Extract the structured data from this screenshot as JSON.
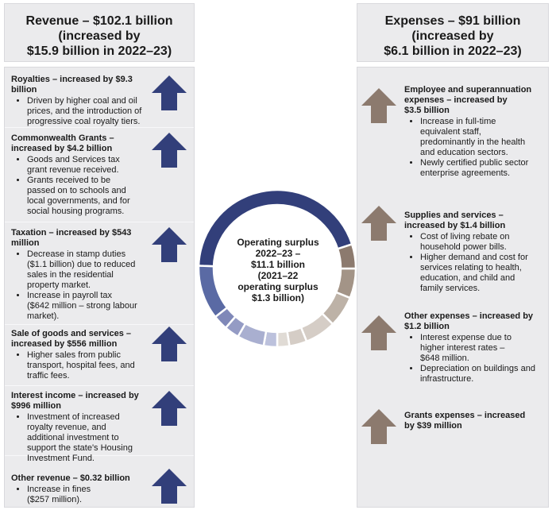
{
  "colors": {
    "revenue_arrow": "#323f7a",
    "expense_arrow": "#8c7a6e",
    "panel_bg": "#ebebed",
    "donut_revenue": [
      "#323f7a",
      "#5a6aa4",
      "#7f88b8",
      "#949bc4",
      "#a9afd0",
      "#bcc1dc"
    ],
    "donut_expense": [
      "#8c7a6e",
      "#a39487",
      "#bdb2a7",
      "#d5cdc6"
    ]
  },
  "revenue": {
    "header_lines": [
      "Revenue – $102.1 billion",
      "(increased by",
      "$15.9 billion in 2022–23)"
    ],
    "items": [
      {
        "title_lines": [
          "Royalties – increased by $9.3",
          "billion"
        ],
        "bullets": [
          [
            "Driven by higher coal and oil",
            "prices, and the introduction of",
            "progressive coal royalty tiers."
          ]
        ],
        "arrow_icon": "up-arrow-icon"
      },
      {
        "title_lines": [
          "Commonwealth Grants –",
          "increased by $4.2 billion"
        ],
        "bullets": [
          [
            "Goods and Services tax",
            "grant revenue received."
          ],
          [
            "Grants received to be",
            "passed on to schools and",
            "local governments, and for",
            "social housing programs."
          ]
        ],
        "arrow_icon": "up-arrow-icon"
      },
      {
        "title_lines": [
          "Taxation – increased by $543",
          "million"
        ],
        "bullets": [
          [
            "Decrease in stamp duties",
            "($1.1 billion) due to reduced",
            "sales in the residential",
            "property market."
          ],
          [
            "Increase in payroll tax",
            "($642 million – strong labour",
            "market)."
          ]
        ],
        "arrow_icon": "up-arrow-icon"
      },
      {
        "title_lines": [
          "Sale of goods and services –",
          "increased by $556 million"
        ],
        "bullets": [
          [
            "Higher sales from public",
            "transport, hospital fees, and",
            "traffic fees."
          ]
        ],
        "arrow_icon": "up-arrow-icon"
      },
      {
        "title_lines": [
          "Interest income – increased by",
          "$996 million"
        ],
        "bullets": [
          [
            "Investment of increased",
            "royalty revenue, and",
            "additional investment to",
            "support the state's Housing",
            "Investment Fund."
          ]
        ],
        "arrow_icon": "up-arrow-icon"
      },
      {
        "title_lines": [
          "Other revenue – $0.32 billion"
        ],
        "bullets": [
          [
            "Increase in fines",
            "($257 million)."
          ]
        ],
        "arrow_icon": "up-arrow-icon"
      }
    ]
  },
  "expenses": {
    "header_lines": [
      "Expenses – $91 billion",
      "(increased by",
      "$6.1 billion in 2022–23)"
    ],
    "items": [
      {
        "title_lines": [
          "Employee and superannuation",
          "expenses – increased by",
          "$3.5 billion"
        ],
        "bullets": [
          [
            "Increase in full-time",
            "equivalent staff,",
            "predominantly in the health",
            "and education sectors."
          ],
          [
            "Newly certified public sector",
            "enterprise agreements."
          ]
        ],
        "arrow_icon": "up-arrow-icon"
      },
      {
        "title_lines": [
          "Supplies and services –",
          "increased by $1.4 billion"
        ],
        "bullets": [
          [
            "Cost of living rebate on",
            "household power bills."
          ],
          [
            "Higher demand and cost for",
            "services relating to health,",
            "education, and child and",
            "family services."
          ]
        ],
        "arrow_icon": "up-arrow-icon"
      },
      {
        "title_lines": [
          "Other expenses – increased by",
          "$1.2 billion"
        ],
        "bullets": [
          [
            "Interest expense due to",
            "higher interest rates –",
            "$648 million."
          ],
          [
            "Depreciation on buildings and",
            "infrastructure."
          ]
        ],
        "arrow_icon": "up-arrow-icon"
      },
      {
        "title_lines": [
          "Grants expenses – increased",
          "by $39 million"
        ],
        "bullets": [],
        "arrow_icon": "up-arrow-icon"
      }
    ]
  },
  "center": {
    "lines": [
      "Operating surplus",
      "2022–23 –",
      "$11.1 billion",
      "(2021–22",
      "operating surplus",
      "$1.3 billion)"
    ]
  }
}
